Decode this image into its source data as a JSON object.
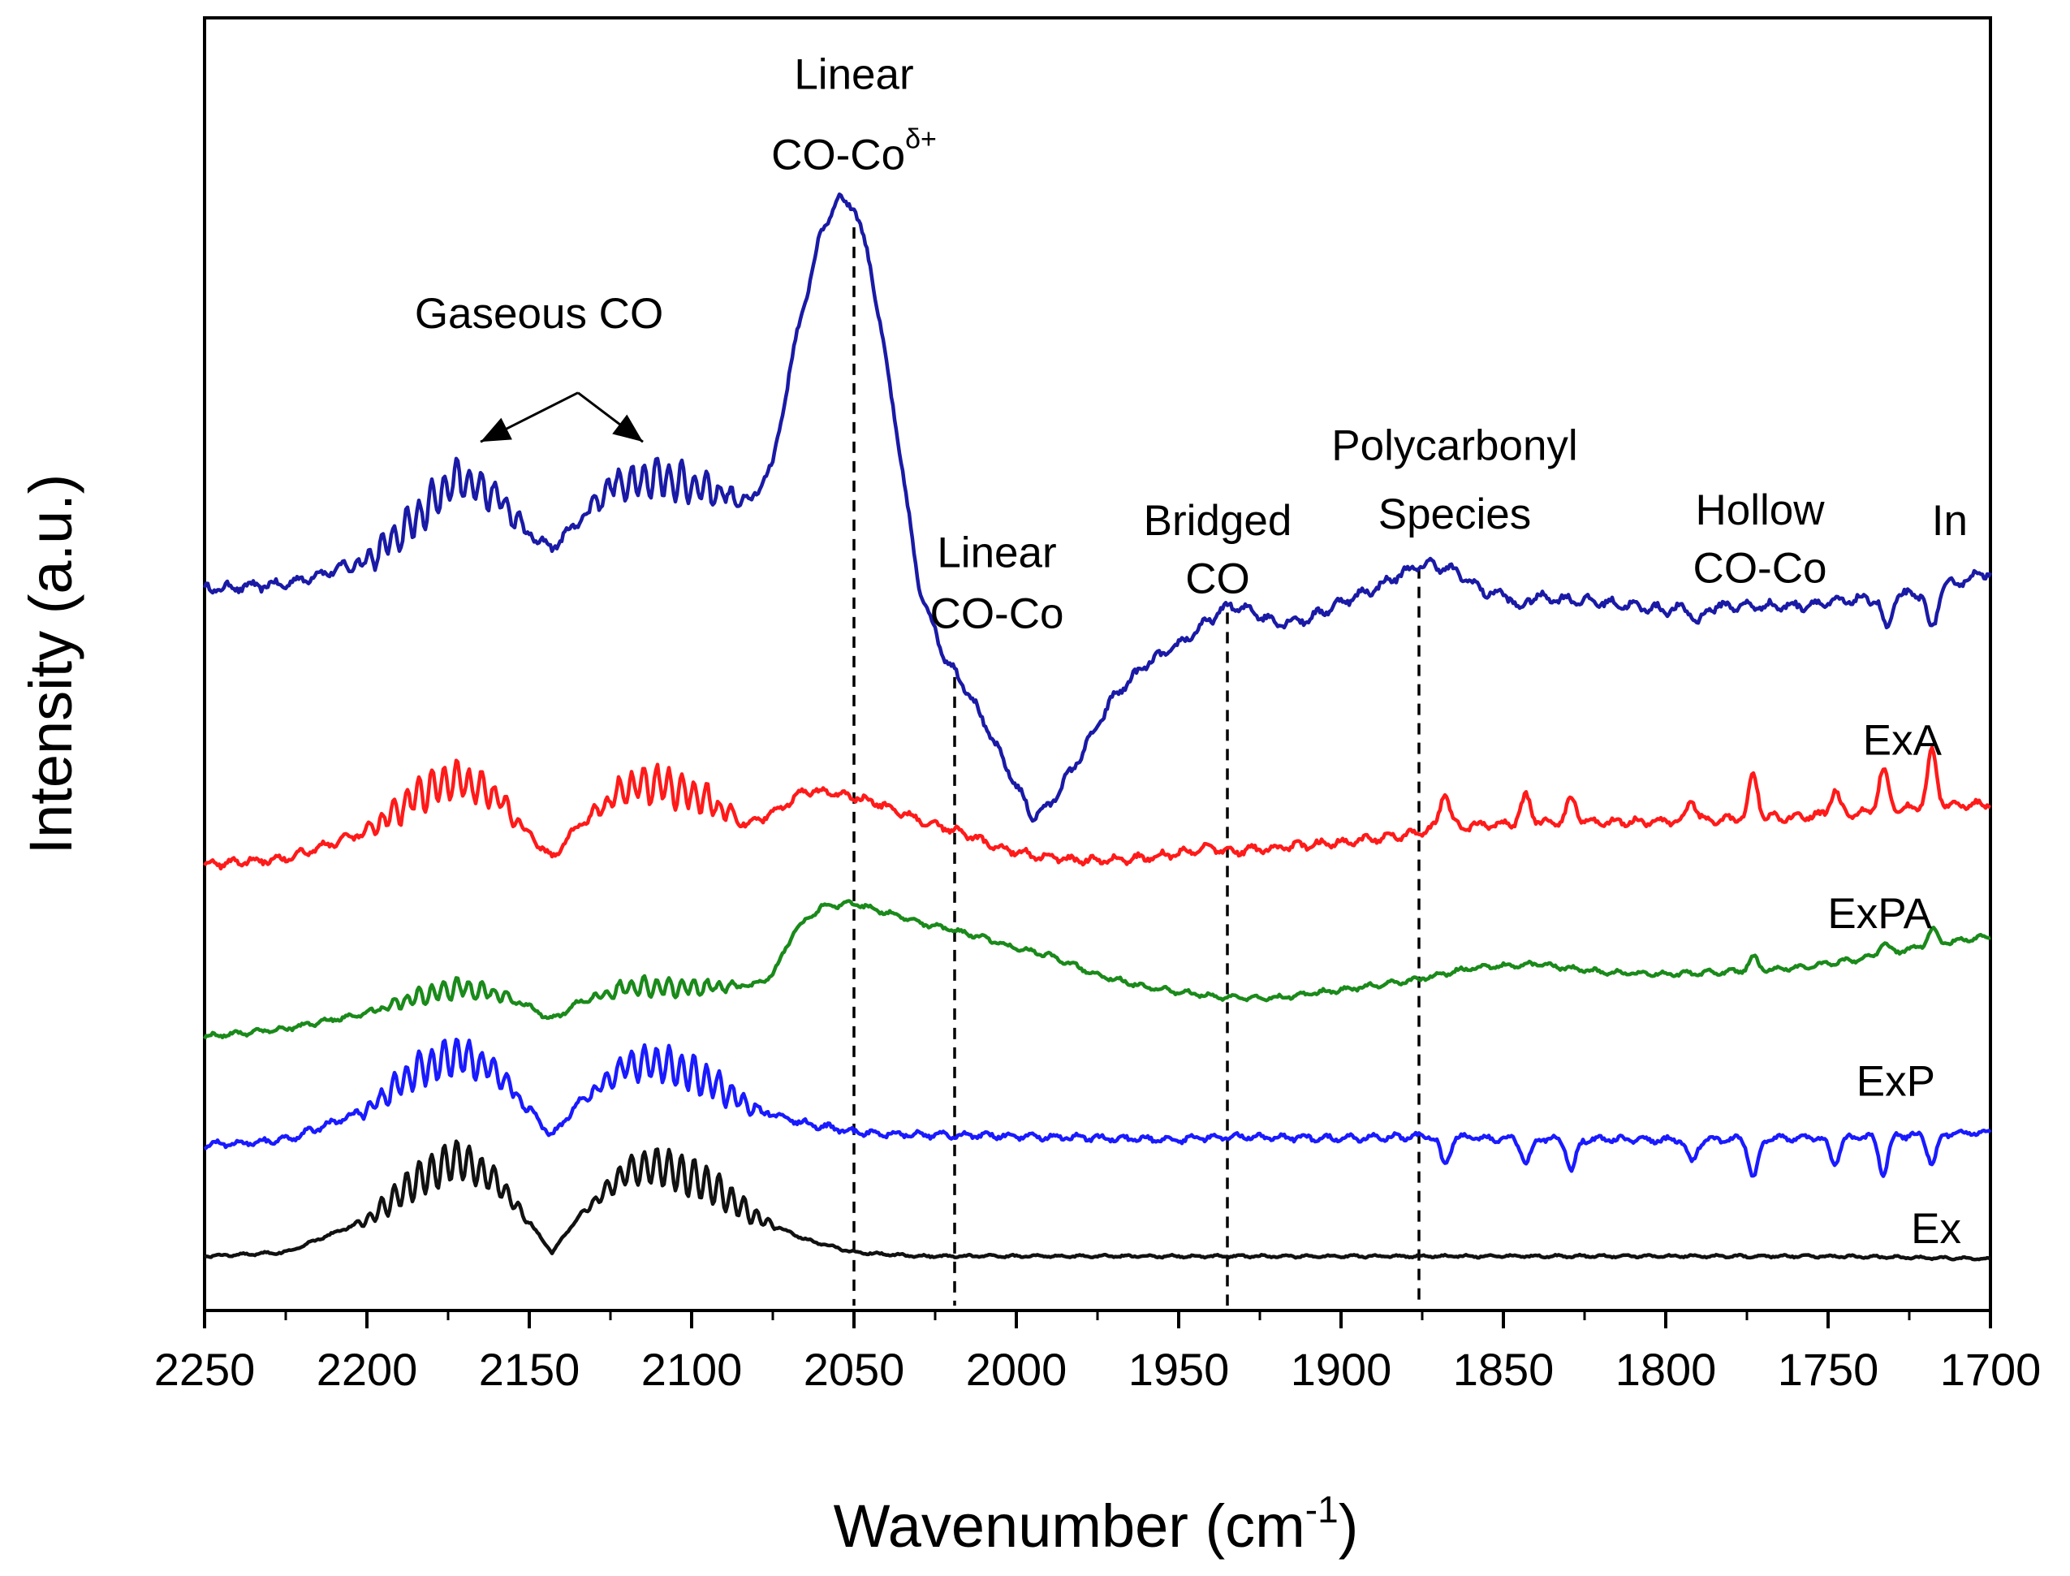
{
  "chart_data": {
    "type": "line",
    "title": "",
    "xlabel": "Wavenumber (cm",
    "xlabel_sup": "-1",
    "xlabel_close": ")",
    "ylabel": "Intensity (a.u.)",
    "xlim": [
      2250,
      1700
    ],
    "x_reversed": true,
    "ylim": [
      0,
      10
    ],
    "y_ticks_shown": false,
    "x_ticks": [
      "2250",
      "2200",
      "2150",
      "2100",
      "2050",
      "2000",
      "1950",
      "1900",
      "1850",
      "1800",
      "1750",
      "1700"
    ],
    "x_tick_values": [
      2250,
      2200,
      2150,
      2100,
      2050,
      2000,
      1950,
      1900,
      1850,
      1800,
      1750,
      1700
    ],
    "series": [
      {
        "name": "In",
        "color": "#1a1aa6",
        "points": [
          [
            2250,
            5.58
          ],
          [
            2225,
            5.62
          ],
          [
            2200,
            5.8
          ],
          [
            2185,
            6.12
          ],
          [
            2172,
            6.45
          ],
          [
            2160,
            6.3
          ],
          [
            2150,
            6.0
          ],
          [
            2143,
            5.9
          ],
          [
            2135,
            6.1
          ],
          [
            2125,
            6.38
          ],
          [
            2110,
            6.45
          ],
          [
            2095,
            6.35
          ],
          [
            2082,
            6.25
          ],
          [
            2075,
            6.55
          ],
          [
            2068,
            7.5
          ],
          [
            2060,
            8.35
          ],
          [
            2055,
            8.6
          ],
          [
            2050,
            8.55
          ],
          [
            2045,
            8.1
          ],
          [
            2038,
            7.0
          ],
          [
            2030,
            5.6
          ],
          [
            2022,
            5.05
          ],
          [
            2015,
            4.8
          ],
          [
            2005,
            4.3
          ],
          [
            1995,
            3.82
          ],
          [
            1990,
            3.9
          ],
          [
            1980,
            4.3
          ],
          [
            1970,
            4.75
          ],
          [
            1960,
            5.0
          ],
          [
            1950,
            5.15
          ],
          [
            1940,
            5.35
          ],
          [
            1935,
            5.45
          ],
          [
            1928,
            5.42
          ],
          [
            1920,
            5.32
          ],
          [
            1910,
            5.35
          ],
          [
            1900,
            5.48
          ],
          [
            1890,
            5.58
          ],
          [
            1880,
            5.72
          ],
          [
            1873,
            5.78
          ],
          [
            1865,
            5.72
          ],
          [
            1855,
            5.55
          ],
          [
            1840,
            5.52
          ],
          [
            1820,
            5.48
          ],
          [
            1800,
            5.42
          ],
          [
            1780,
            5.45
          ],
          [
            1760,
            5.45
          ],
          [
            1740,
            5.5
          ],
          [
            1720,
            5.55
          ],
          [
            1700,
            5.72
          ]
        ],
        "osc": [
          [
            2210,
            2145,
            0.14
          ],
          [
            2138,
            2080,
            0.14
          ]
        ],
        "noise": 0.06,
        "spikes": [
          [
            1732,
            -0.25
          ],
          [
            1718,
            -0.3
          ],
          [
            1790,
            -0.12
          ],
          [
            1845,
            -0.12
          ]
        ]
      },
      {
        "name": "ExA",
        "color": "#ff1a1a",
        "points": [
          [
            2250,
            3.45
          ],
          [
            2225,
            3.5
          ],
          [
            2200,
            3.7
          ],
          [
            2185,
            3.98
          ],
          [
            2172,
            4.12
          ],
          [
            2160,
            3.98
          ],
          [
            2150,
            3.68
          ],
          [
            2143,
            3.5
          ],
          [
            2135,
            3.75
          ],
          [
            2120,
            4.05
          ],
          [
            2110,
            4.08
          ],
          [
            2095,
            3.95
          ],
          [
            2083,
            3.75
          ],
          [
            2075,
            3.85
          ],
          [
            2065,
            4.02
          ],
          [
            2055,
            4.0
          ],
          [
            2050,
            3.98
          ],
          [
            2040,
            3.9
          ],
          [
            2030,
            3.8
          ],
          [
            2020,
            3.72
          ],
          [
            2005,
            3.58
          ],
          [
            1995,
            3.52
          ],
          [
            1980,
            3.48
          ],
          [
            1960,
            3.5
          ],
          [
            1940,
            3.58
          ],
          [
            1935,
            3.55
          ],
          [
            1920,
            3.58
          ],
          [
            1900,
            3.62
          ],
          [
            1880,
            3.68
          ],
          [
            1873,
            3.72
          ],
          [
            1860,
            3.75
          ],
          [
            1840,
            3.78
          ],
          [
            1820,
            3.78
          ],
          [
            1800,
            3.78
          ],
          [
            1780,
            3.8
          ],
          [
            1760,
            3.82
          ],
          [
            1740,
            3.85
          ],
          [
            1720,
            3.9
          ],
          [
            1700,
            3.92
          ]
        ],
        "osc": [
          [
            2205,
            2148,
            0.14
          ],
          [
            2135,
            2082,
            0.14
          ]
        ],
        "noise": 0.05,
        "spikes": [
          [
            1868,
            0.28
          ],
          [
            1843,
            0.2
          ],
          [
            1829,
            0.18
          ],
          [
            1792,
            0.16
          ],
          [
            1773,
            0.32
          ],
          [
            1733,
            0.32
          ],
          [
            1718,
            0.42
          ],
          [
            1748,
            0.18
          ]
        ]
      },
      {
        "name": "ExPA",
        "color": "#1a8a1a",
        "points": [
          [
            2250,
            2.12
          ],
          [
            2225,
            2.18
          ],
          [
            2200,
            2.3
          ],
          [
            2185,
            2.42
          ],
          [
            2172,
            2.5
          ],
          [
            2160,
            2.45
          ],
          [
            2150,
            2.35
          ],
          [
            2143,
            2.25
          ],
          [
            2135,
            2.38
          ],
          [
            2120,
            2.5
          ],
          [
            2095,
            2.5
          ],
          [
            2080,
            2.52
          ],
          [
            2075,
            2.6
          ],
          [
            2068,
            2.95
          ],
          [
            2060,
            3.12
          ],
          [
            2050,
            3.15
          ],
          [
            2040,
            3.08
          ],
          [
            2030,
            3.0
          ],
          [
            2020,
            2.95
          ],
          [
            2010,
            2.88
          ],
          [
            2000,
            2.8
          ],
          [
            1990,
            2.75
          ],
          [
            1975,
            2.6
          ],
          [
            1960,
            2.5
          ],
          [
            1945,
            2.45
          ],
          [
            1935,
            2.42
          ],
          [
            1920,
            2.42
          ],
          [
            1900,
            2.48
          ],
          [
            1880,
            2.55
          ],
          [
            1873,
            2.58
          ],
          [
            1860,
            2.65
          ],
          [
            1840,
            2.68
          ],
          [
            1820,
            2.62
          ],
          [
            1800,
            2.6
          ],
          [
            1780,
            2.62
          ],
          [
            1760,
            2.65
          ],
          [
            1740,
            2.72
          ],
          [
            1720,
            2.82
          ],
          [
            1700,
            2.9
          ]
        ],
        "osc": [
          [
            2200,
            2150,
            0.07
          ],
          [
            2135,
            2082,
            0.07
          ]
        ],
        "noise": 0.03,
        "spikes": [
          [
            1718,
            0.12
          ],
          [
            1773,
            0.1
          ],
          [
            1733,
            0.08
          ]
        ]
      },
      {
        "name": "ExP",
        "color": "#1a1aff",
        "points": [
          [
            2250,
            1.28
          ],
          [
            2225,
            1.32
          ],
          [
            2200,
            1.55
          ],
          [
            2185,
            1.85
          ],
          [
            2172,
            1.98
          ],
          [
            2160,
            1.85
          ],
          [
            2150,
            1.55
          ],
          [
            2143,
            1.35
          ],
          [
            2135,
            1.6
          ],
          [
            2120,
            1.9
          ],
          [
            2110,
            1.92
          ],
          [
            2095,
            1.78
          ],
          [
            2080,
            1.55
          ],
          [
            2065,
            1.45
          ],
          [
            2050,
            1.38
          ],
          [
            2030,
            1.36
          ],
          [
            2000,
            1.35
          ],
          [
            1950,
            1.32
          ],
          [
            1935,
            1.35
          ],
          [
            1900,
            1.33
          ],
          [
            1873,
            1.35
          ],
          [
            1850,
            1.33
          ],
          [
            1800,
            1.32
          ],
          [
            1760,
            1.33
          ],
          [
            1740,
            1.34
          ],
          [
            1720,
            1.36
          ],
          [
            1700,
            1.38
          ]
        ],
        "osc": [
          [
            2205,
            2148,
            0.14
          ],
          [
            2135,
            2075,
            0.14
          ]
        ],
        "noise": 0.04,
        "spikes": [
          [
            1868,
            -0.22
          ],
          [
            1843,
            -0.2
          ],
          [
            1829,
            -0.24
          ],
          [
            1792,
            -0.18
          ],
          [
            1773,
            -0.3
          ],
          [
            1748,
            -0.2
          ],
          [
            1733,
            -0.28
          ],
          [
            1718,
            -0.22
          ]
        ]
      },
      {
        "name": "Ex",
        "color": "#111111",
        "points": [
          [
            2250,
            0.42
          ],
          [
            2225,
            0.45
          ],
          [
            2200,
            0.7
          ],
          [
            2185,
            1.0
          ],
          [
            2172,
            1.18
          ],
          [
            2160,
            1.0
          ],
          [
            2150,
            0.68
          ],
          [
            2143,
            0.45
          ],
          [
            2135,
            0.72
          ],
          [
            2120,
            1.08
          ],
          [
            2110,
            1.12
          ],
          [
            2095,
            0.98
          ],
          [
            2080,
            0.72
          ],
          [
            2065,
            0.55
          ],
          [
            2050,
            0.45
          ],
          [
            2030,
            0.42
          ],
          [
            2000,
            0.42
          ],
          [
            1950,
            0.42
          ],
          [
            1900,
            0.42
          ],
          [
            1850,
            0.42
          ],
          [
            1800,
            0.42
          ],
          [
            1750,
            0.42
          ],
          [
            1700,
            0.4
          ]
        ],
        "osc": [
          [
            2205,
            2148,
            0.15
          ],
          [
            2135,
            2072,
            0.15
          ]
        ],
        "noise": 0.015,
        "spikes": []
      }
    ],
    "series_labels": [
      {
        "text": "In",
        "x": 1707,
        "y": 6.0
      },
      {
        "text": "ExA",
        "x": 1715,
        "y": 4.3
      },
      {
        "text": "ExPA",
        "x": 1718,
        "y": 2.96
      },
      {
        "text": "ExP",
        "x": 1717,
        "y": 1.66
      },
      {
        "text": "Ex",
        "x": 1709,
        "y": 0.52
      }
    ],
    "dashed_lines": [
      {
        "x": 2050,
        "y_top": 8.38
      },
      {
        "x": 2019,
        "y_top": 4.9
      },
      {
        "x": 1935,
        "y_top": 5.4
      },
      {
        "x": 1876,
        "y_top": 5.75
      }
    ],
    "annotations": [
      {
        "name": "linear-co-co-delta",
        "lines": [
          "Linear",
          "CO-Co"
        ],
        "sup": "δ+",
        "x": 2050,
        "y_line1": 9.45,
        "y_line2": 8.83
      },
      {
        "name": "gaseous-co",
        "lines": [
          "Gaseous CO"
        ],
        "x": 2147,
        "y_line1": 7.6
      },
      {
        "name": "linear-co-co",
        "lines": [
          "Linear",
          "CO-Co"
        ],
        "x": 2006,
        "y_line1": 5.75,
        "y_line2": 5.28
      },
      {
        "name": "bridged-co",
        "lines": [
          "Bridged",
          "CO"
        ],
        "x": 1938,
        "y_line1": 6.0,
        "y_line2": 5.55
      },
      {
        "name": "polycarbonyl-species",
        "lines": [
          "Polycarbonyl",
          "Species"
        ],
        "x": 1865,
        "y_line1": 6.58,
        "y_line2": 6.05
      },
      {
        "name": "hollow-co-co",
        "lines": [
          "Hollow",
          "CO-Co"
        ],
        "x": 1771,
        "y_line1": 6.08,
        "y_line2": 5.63
      }
    ],
    "arrows": [
      {
        "from": [
          2135,
          7.1
        ],
        "to": [
          2165,
          6.72
        ]
      },
      {
        "from": [
          2135,
          7.1
        ],
        "to": [
          2115,
          6.72
        ]
      }
    ]
  }
}
